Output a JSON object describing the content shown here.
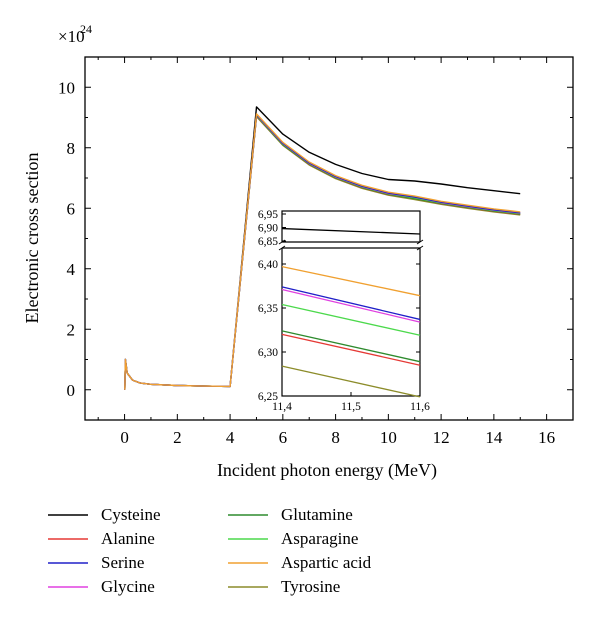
{
  "chart_data": {
    "type": "line",
    "title": "",
    "xlabel": "Incident photon energy (MeV)",
    "ylabel": "Electronic cross section",
    "y_multiplier_label": "×10",
    "y_multiplier_exponent": "24",
    "xlim": [
      -1.5,
      17
    ],
    "ylim": [
      -1,
      11
    ],
    "xticks": [
      0,
      2,
      4,
      6,
      8,
      10,
      12,
      14,
      16
    ],
    "yticks": [
      0,
      2,
      4,
      6,
      8,
      10
    ],
    "grid": false,
    "legend_position": "bottom",
    "series": [
      {
        "name": "Cysteine",
        "color": "#000000",
        "x": [
          0.01,
          0.03,
          0.1,
          0.3,
          0.6,
          1,
          2,
          3,
          4,
          5,
          6,
          7,
          8,
          9,
          10,
          11,
          12,
          13,
          14,
          15
        ],
        "y": [
          0,
          1.0,
          0.55,
          0.32,
          0.22,
          0.18,
          0.14,
          0.12,
          0.11,
          9.35,
          8.45,
          7.85,
          7.45,
          7.15,
          6.95,
          6.9,
          6.8,
          6.68,
          6.58,
          6.48
        ]
      },
      {
        "name": "Alanine",
        "color": "#e53935",
        "x": [
          0.01,
          0.03,
          0.1,
          0.3,
          0.6,
          1,
          2,
          3,
          4,
          5,
          6,
          7,
          8,
          9,
          10,
          11,
          12,
          13,
          14,
          15
        ],
        "y": [
          0,
          1.0,
          0.55,
          0.32,
          0.22,
          0.18,
          0.14,
          0.12,
          0.11,
          9.05,
          8.1,
          7.45,
          7.0,
          6.68,
          6.45,
          6.32,
          6.15,
          6.02,
          5.9,
          5.8
        ]
      },
      {
        "name": "Serine",
        "color": "#2020c8",
        "x": [
          0.01,
          0.03,
          0.1,
          0.3,
          0.6,
          1,
          2,
          3,
          4,
          5,
          6,
          7,
          8,
          9,
          10,
          11,
          12,
          13,
          14,
          15
        ],
        "y": [
          0,
          1.0,
          0.55,
          0.32,
          0.22,
          0.18,
          0.14,
          0.12,
          0.11,
          9.1,
          8.15,
          7.5,
          7.05,
          6.73,
          6.5,
          6.37,
          6.2,
          6.07,
          5.95,
          5.85
        ]
      },
      {
        "name": "Glycine",
        "color": "#e040e0",
        "x": [
          0.01,
          0.03,
          0.1,
          0.3,
          0.6,
          1,
          2,
          3,
          4,
          5,
          6,
          7,
          8,
          9,
          10,
          11,
          12,
          13,
          14,
          15
        ],
        "y": [
          0,
          1.0,
          0.55,
          0.32,
          0.22,
          0.18,
          0.14,
          0.12,
          0.11,
          9.09,
          8.14,
          7.49,
          7.04,
          6.72,
          6.49,
          6.37,
          6.19,
          6.06,
          5.94,
          5.84
        ]
      },
      {
        "name": "Glutamine",
        "color": "#2e8b2e",
        "x": [
          0.01,
          0.03,
          0.1,
          0.3,
          0.6,
          1,
          2,
          3,
          4,
          5,
          6,
          7,
          8,
          9,
          10,
          11,
          12,
          13,
          14,
          15
        ],
        "y": [
          0,
          1.0,
          0.55,
          0.32,
          0.22,
          0.18,
          0.14,
          0.12,
          0.11,
          9.06,
          8.1,
          7.46,
          7.01,
          6.69,
          6.46,
          6.32,
          6.16,
          6.03,
          5.91,
          5.81
        ]
      },
      {
        "name": "Asparagine",
        "color": "#4cd94c",
        "x": [
          0.01,
          0.03,
          0.1,
          0.3,
          0.6,
          1,
          2,
          3,
          4,
          5,
          6,
          7,
          8,
          9,
          10,
          11,
          12,
          13,
          14,
          15
        ],
        "y": [
          0,
          1.0,
          0.55,
          0.32,
          0.22,
          0.18,
          0.14,
          0.12,
          0.11,
          9.08,
          8.13,
          7.48,
          7.03,
          6.71,
          6.48,
          6.35,
          6.18,
          6.05,
          5.93,
          5.83
        ]
      },
      {
        "name": "Aspartic acid",
        "color": "#f0a030",
        "x": [
          0.01,
          0.03,
          0.1,
          0.3,
          0.6,
          1,
          2,
          3,
          4,
          5,
          6,
          7,
          8,
          9,
          10,
          11,
          12,
          13,
          14,
          15
        ],
        "y": [
          0,
          1.0,
          0.55,
          0.32,
          0.22,
          0.18,
          0.14,
          0.12,
          0.11,
          9.12,
          8.18,
          7.53,
          7.08,
          6.76,
          6.53,
          6.4,
          6.23,
          6.1,
          5.98,
          5.88
        ]
      },
      {
        "name": "Tyrosine",
        "color": "#8c8c2a",
        "x": [
          0.01,
          0.03,
          0.1,
          0.3,
          0.6,
          1,
          2,
          3,
          4,
          5,
          6,
          7,
          8,
          9,
          10,
          11,
          12,
          13,
          14,
          15
        ],
        "y": [
          0,
          1.0,
          0.55,
          0.32,
          0.22,
          0.18,
          0.14,
          0.12,
          0.11,
          9.03,
          8.08,
          7.43,
          6.98,
          6.66,
          6.43,
          6.29,
          6.13,
          6.0,
          5.88,
          5.78
        ]
      }
    ],
    "inset": {
      "xlim": [
        11.4,
        11.6
      ],
      "xticks": [
        11.4,
        11.5,
        11.6
      ],
      "xtick_labels": [
        "11,4",
        "11,5",
        "11,6"
      ],
      "upper_ylim": [
        6.85,
        6.95
      ],
      "upper_yticks": [
        6.85,
        6.9,
        6.95
      ],
      "upper_ytick_labels": [
        "6,85",
        "6,90",
        "6,95"
      ],
      "lower_ylim": [
        6.25,
        6.4
      ],
      "lower_yticks": [
        6.25,
        6.3,
        6.35,
        6.4
      ],
      "lower_ytick_labels": [
        "6,25",
        "6,30",
        "6,35",
        "6,40"
      ],
      "axis_break": true,
      "lines": [
        {
          "name": "Cysteine",
          "x": [
            11.4,
            11.6
          ],
          "y": [
            6.896,
            6.876
          ]
        },
        {
          "name": "Aspartic acid",
          "x": [
            11.4,
            11.6
          ],
          "y": [
            6.397,
            6.364
          ]
        },
        {
          "name": "Serine",
          "x": [
            11.4,
            11.6
          ],
          "y": [
            6.374,
            6.337
          ]
        },
        {
          "name": "Glycine",
          "x": [
            11.4,
            11.6
          ],
          "y": [
            6.371,
            6.334
          ]
        },
        {
          "name": "Asparagine",
          "x": [
            11.4,
            11.6
          ],
          "y": [
            6.354,
            6.319
          ]
        },
        {
          "name": "Glutamine",
          "x": [
            11.4,
            11.6
          ],
          "y": [
            6.324,
            6.289
          ]
        },
        {
          "name": "Alanine",
          "x": [
            11.4,
            11.6
          ],
          "y": [
            6.32,
            6.285
          ]
        },
        {
          "name": "Tyrosine",
          "x": [
            11.4,
            11.6
          ],
          "y": [
            6.284,
            6.249
          ]
        }
      ]
    }
  }
}
